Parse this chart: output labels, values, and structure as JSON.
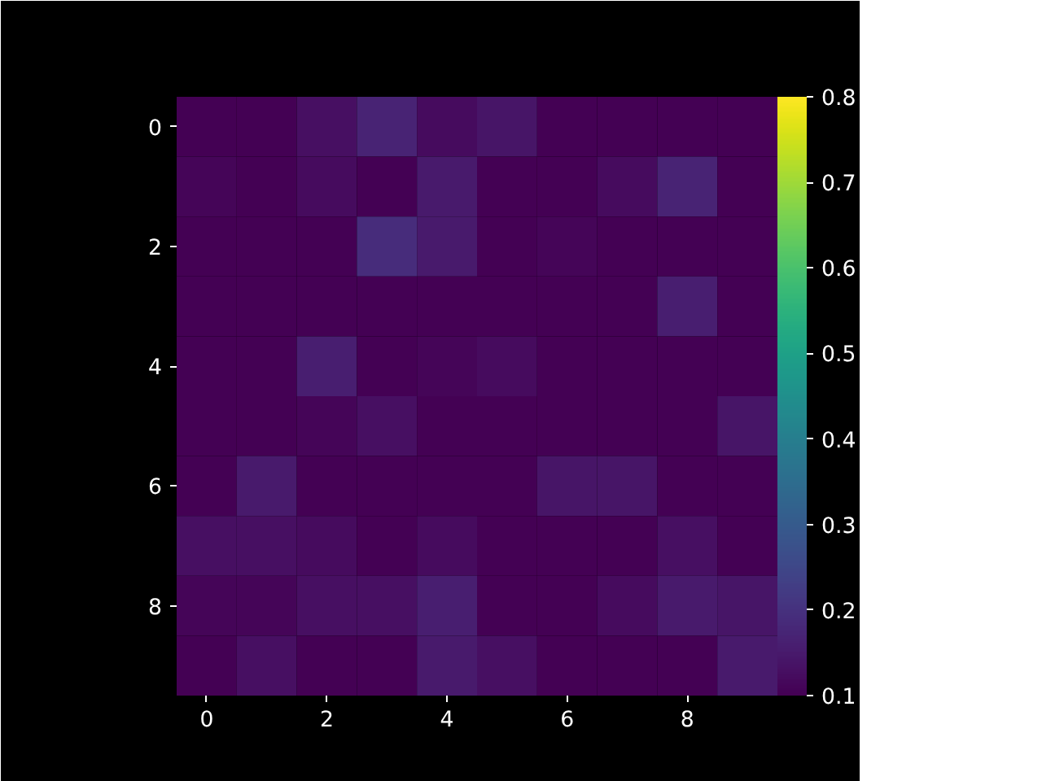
{
  "chart_data": {
    "type": "heatmap",
    "xlim": [
      -0.5,
      9.5
    ],
    "ylim": [
      9.5,
      -0.5
    ],
    "xticks": [
      0,
      2,
      4,
      6,
      8
    ],
    "yticks": [
      0,
      2,
      4,
      6,
      8
    ],
    "clim": [
      0.1,
      0.8
    ],
    "cticks": [
      0.1,
      0.2,
      0.3,
      0.4,
      0.5,
      0.6,
      0.7,
      0.8
    ],
    "grid": false,
    "cells": [
      [
        0.1,
        0.1,
        0.13,
        0.17,
        0.12,
        0.14,
        0.1,
        0.1,
        0.1,
        0.1
      ],
      [
        0.11,
        0.1,
        0.12,
        0.1,
        0.15,
        0.1,
        0.1,
        0.12,
        0.17,
        0.1
      ],
      [
        0.1,
        0.1,
        0.1,
        0.19,
        0.15,
        0.1,
        0.11,
        0.1,
        0.1,
        0.1
      ],
      [
        0.1,
        0.1,
        0.1,
        0.1,
        0.1,
        0.1,
        0.1,
        0.1,
        0.16,
        0.1
      ],
      [
        0.1,
        0.1,
        0.16,
        0.1,
        0.11,
        0.12,
        0.1,
        0.1,
        0.1,
        0.1
      ],
      [
        0.1,
        0.1,
        0.11,
        0.13,
        0.1,
        0.1,
        0.1,
        0.1,
        0.1,
        0.14
      ],
      [
        0.1,
        0.15,
        0.1,
        0.1,
        0.1,
        0.1,
        0.14,
        0.14,
        0.1,
        0.1
      ],
      [
        0.13,
        0.13,
        0.12,
        0.1,
        0.12,
        0.1,
        0.1,
        0.1,
        0.13,
        0.1
      ],
      [
        0.11,
        0.11,
        0.13,
        0.13,
        0.16,
        0.1,
        0.1,
        0.12,
        0.15,
        0.14
      ],
      [
        0.1,
        0.13,
        0.1,
        0.1,
        0.15,
        0.13,
        0.1,
        0.1,
        0.1,
        0.15
      ]
    ]
  }
}
